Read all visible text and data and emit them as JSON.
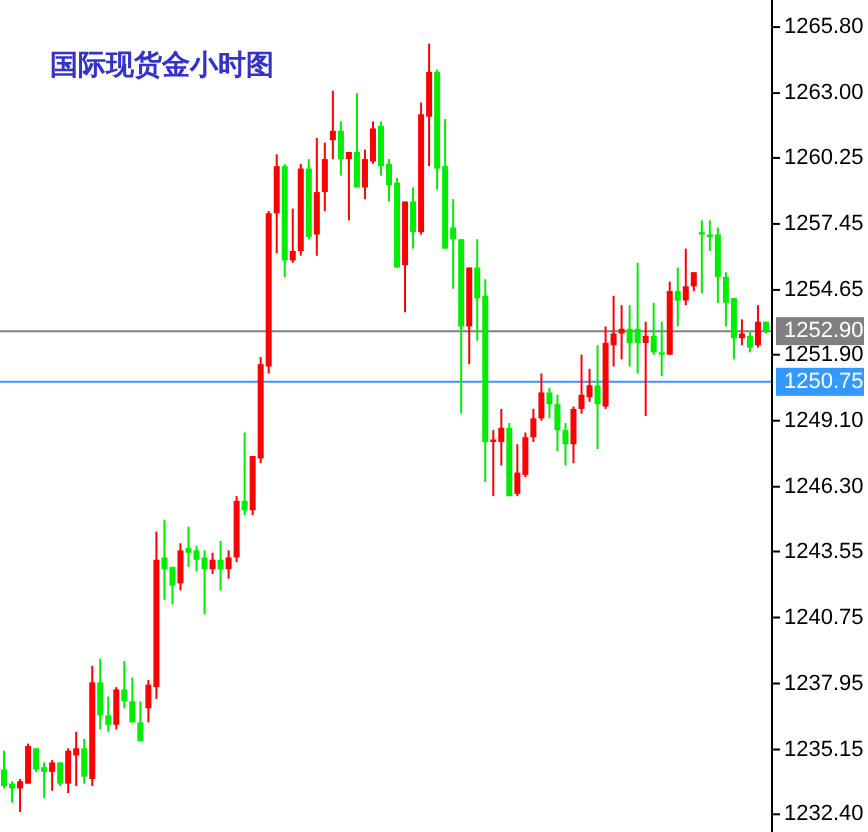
{
  "chart_data": {
    "type": "candlestick",
    "title": "国际现货金小时图",
    "categories": [
      null,
      null,
      null,
      null,
      null,
      null,
      null,
      null,
      null,
      null,
      null,
      null,
      null,
      null,
      null,
      null,
      null,
      null,
      null,
      null,
      null,
      null,
      null,
      null,
      null,
      null,
      null,
      null,
      null,
      null,
      null,
      null,
      null,
      null,
      null,
      null,
      null,
      null,
      null,
      null,
      null,
      null,
      null,
      null,
      null,
      null,
      null,
      null,
      null,
      null,
      null,
      null,
      null,
      null,
      null,
      null,
      null,
      null,
      null,
      null,
      null,
      null,
      null,
      null,
      null,
      null,
      null,
      null,
      null,
      null,
      null,
      null,
      null,
      null,
      null,
      null,
      null,
      null,
      null,
      null,
      null,
      null,
      null,
      null,
      null,
      null,
      null,
      null,
      null,
      null,
      null,
      null,
      null,
      null,
      null,
      null
    ],
    "ohlc": [
      [
        1234.3,
        1235.1,
        1233.5,
        1233.6
      ],
      [
        1233.7,
        1233.8,
        1232.9,
        1233.5
      ],
      [
        1233.5,
        1233.9,
        1232.5,
        1233.8
      ],
      [
        1233.7,
        1235.4,
        1233.7,
        1235.3
      ],
      [
        1235.2,
        1235.2,
        1234.2,
        1234.3
      ],
      [
        1234.4,
        1234.6,
        1233.1,
        1234.2
      ],
      [
        1234.2,
        1234.7,
        1233.4,
        1234.6
      ],
      [
        1234.6,
        1234.6,
        1233.6,
        1233.7
      ],
      [
        1233.7,
        1235.2,
        1233.3,
        1235.1
      ],
      [
        1234.9,
        1235.9,
        1233.6,
        1235.2
      ],
      [
        1235.2,
        1235.6,
        1233.7,
        1234.0
      ],
      [
        1233.9,
        1238.7,
        1233.6,
        1238.0
      ],
      [
        1238.0,
        1239.0,
        1236.0,
        1236.6
      ],
      [
        1236.6,
        1237.4,
        1235.9,
        1236.2
      ],
      [
        1236.2,
        1237.8,
        1236.0,
        1237.7
      ],
      [
        1237.7,
        1238.9,
        1236.9,
        1237.2
      ],
      [
        1237.2,
        1238.2,
        1236.3,
        1236.3
      ],
      [
        1236.3,
        1237.2,
        1235.5,
        1235.5
      ],
      [
        1236.9,
        1238.1,
        1236.3,
        1237.9
      ],
      [
        1237.8,
        1244.4,
        1237.3,
        1243.2
      ],
      [
        1243.3,
        1244.9,
        1241.5,
        1242.8
      ],
      [
        1242.9,
        1242.9,
        1241.3,
        1242.1
      ],
      [
        1242.2,
        1243.9,
        1241.9,
        1243.6
      ],
      [
        1243.7,
        1244.6,
        1242.9,
        1243.5
      ],
      [
        1243.6,
        1243.8,
        1242.7,
        1243.2
      ],
      [
        1243.3,
        1243.6,
        1240.9,
        1242.8
      ],
      [
        1242.8,
        1243.5,
        1242.6,
        1243.2
      ],
      [
        1243.2,
        1244.0,
        1241.9,
        1242.8
      ],
      [
        1242.8,
        1243.6,
        1242.4,
        1243.3
      ],
      [
        1243.3,
        1245.9,
        1243.1,
        1245.7
      ],
      [
        1245.7,
        1248.6,
        1245.1,
        1245.3
      ],
      [
        1245.3,
        1247.6,
        1245.1,
        1247.6
      ],
      [
        1247.5,
        1251.8,
        1247.3,
        1251.5
      ],
      [
        1251.4,
        1258.0,
        1251.1,
        1257.9
      ],
      [
        1257.9,
        1260.4,
        1256.2,
        1259.9
      ],
      [
        1259.9,
        1260.0,
        1255.2,
        1255.9
      ],
      [
        1255.9,
        1258.1,
        1255.8,
        1256.3
      ],
      [
        1256.3,
        1260.0,
        1256.1,
        1259.8
      ],
      [
        1259.8,
        1260.2,
        1256.8,
        1256.9
      ],
      [
        1257.0,
        1261.1,
        1256.1,
        1258.8
      ],
      [
        1258.8,
        1260.9,
        1258.0,
        1260.2
      ],
      [
        1261.0,
        1263.1,
        1260.2,
        1261.4
      ],
      [
        1261.4,
        1261.8,
        1259.5,
        1260.2
      ],
      [
        1260.2,
        1260.5,
        1257.6,
        1260.5
      ],
      [
        1260.5,
        1263.0,
        1259.0,
        1259.0
      ],
      [
        1259.0,
        1260.6,
        1258.5,
        1260.2
      ],
      [
        1260.1,
        1261.8,
        1260.0,
        1261.5
      ],
      [
        1261.6,
        1261.8,
        1259.5,
        1259.9
      ],
      [
        1260.0,
        1260.2,
        1258.4,
        1259.1
      ],
      [
        1259.2,
        1259.4,
        1255.6,
        1255.6
      ],
      [
        1255.7,
        1258.4,
        1253.7,
        1258.4
      ],
      [
        1258.4,
        1259.0,
        1256.4,
        1257.1
      ],
      [
        1257.1,
        1262.6,
        1257.0,
        1262.1
      ],
      [
        1262.0,
        1265.1,
        1259.9,
        1263.9
      ],
      [
        1263.9,
        1264.0,
        1258.9,
        1259.8
      ],
      [
        1259.9,
        1261.9,
        1256.4,
        1256.4
      ],
      [
        1257.3,
        1258.5,
        1254.7,
        1256.8
      ],
      [
        1256.8,
        1256.8,
        1249.4,
        1253.1
      ],
      [
        1253.1,
        1255.6,
        1251.5,
        1255.6
      ],
      [
        1255.6,
        1256.8,
        1252.5,
        1254.3
      ],
      [
        1254.4,
        1255.1,
        1246.5,
        1248.2
      ],
      [
        1248.2,
        1248.7,
        1245.9,
        1248.3
      ],
      [
        1248.2,
        1249.6,
        1247.2,
        1248.8
      ],
      [
        1248.8,
        1249.0,
        1245.9,
        1245.9
      ],
      [
        1246.0,
        1248.1,
        1245.9,
        1246.9
      ],
      [
        1246.8,
        1248.6,
        1246.7,
        1248.4
      ],
      [
        1248.4,
        1249.6,
        1248.2,
        1249.2
      ],
      [
        1249.2,
        1251.1,
        1249.1,
        1250.3
      ],
      [
        1250.3,
        1250.5,
        1249.2,
        1249.8
      ],
      [
        1249.8,
        1250.2,
        1247.8,
        1248.7
      ],
      [
        1248.7,
        1249.0,
        1247.2,
        1248.1
      ],
      [
        1248.1,
        1249.7,
        1247.3,
        1249.6
      ],
      [
        1249.6,
        1251.9,
        1249.4,
        1250.2
      ],
      [
        1250.1,
        1251.3,
        1249.9,
        1250.6
      ],
      [
        1250.6,
        1252.3,
        1247.9,
        1249.8
      ],
      [
        1249.7,
        1253.1,
        1249.6,
        1252.4
      ],
      [
        1252.3,
        1254.4,
        1251.4,
        1252.8
      ],
      [
        1252.8,
        1254.0,
        1251.7,
        1253.0
      ],
      [
        1253.0,
        1254.0,
        1251.4,
        1252.4
      ],
      [
        1253.0,
        1255.8,
        1251.1,
        1252.4
      ],
      [
        1252.4,
        1253.3,
        1249.3,
        1252.7
      ],
      [
        1252.7,
        1254.1,
        1251.9,
        1252.0
      ],
      [
        1252.0,
        1253.3,
        1251.0,
        1251.9
      ],
      [
        1251.9,
        1255.0,
        1251.9,
        1254.6
      ],
      [
        1254.6,
        1255.6,
        1253.1,
        1254.2
      ],
      [
        1254.2,
        1256.4,
        1254.0,
        1254.8
      ],
      [
        1254.8,
        1255.4,
        1254.6,
        1255.4
      ],
      [
        1257.1,
        1257.6,
        1254.5,
        1257.0
      ],
      [
        1257.0,
        1257.6,
        1256.3,
        1256.9
      ],
      [
        1257.0,
        1257.3,
        1254.1,
        1255.2
      ],
      [
        1255.2,
        1255.4,
        1253.1,
        1254.1
      ],
      [
        1254.3,
        1254.3,
        1251.7,
        1252.6
      ],
      [
        1252.6,
        1253.4,
        1252.3,
        1252.8
      ],
      [
        1252.7,
        1252.9,
        1252.0,
        1252.2
      ],
      [
        1252.3,
        1254.0,
        1252.2,
        1253.3
      ],
      [
        1253.3,
        1253.3,
        1252.8,
        1252.9
      ]
    ],
    "colors": [
      "#00ee00",
      "#00ee00",
      "#ff0000",
      "#ff0000",
      "#00ee00",
      "#00ee00",
      "#ff0000",
      "#00ee00",
      "#ff0000",
      "#ff0000",
      "#00ee00",
      "#ff0000",
      "#00ee00",
      "#00ee00",
      "#ff0000",
      "#00ee00",
      "#00ee00",
      "#00ee00",
      "#ff0000",
      "#ff0000",
      "#00ee00",
      "#00ee00",
      "#ff0000",
      "#00ee00",
      "#00ee00",
      "#00ee00",
      "#ff0000",
      "#00ee00",
      "#ff0000",
      "#ff0000",
      "#00ee00",
      "#ff0000",
      "#ff0000",
      "#ff0000",
      "#ff0000",
      "#00ee00",
      "#ff0000",
      "#ff0000",
      "#00ee00",
      "#ff0000",
      "#ff0000",
      "#ff0000",
      "#00ee00",
      "#ff0000",
      "#00ee00",
      "#ff0000",
      "#ff0000",
      "#00ee00",
      "#00ee00",
      "#00ee00",
      "#ff0000",
      "#00ee00",
      "#ff0000",
      "#ff0000",
      "#00ee00",
      "#00ee00",
      "#00ee00",
      "#00ee00",
      "#ff0000",
      "#00ee00",
      "#00ee00",
      "#ff0000",
      "#ff0000",
      "#00ee00",
      "#ff0000",
      "#ff0000",
      "#ff0000",
      "#ff0000",
      "#00ee00",
      "#00ee00",
      "#00ee00",
      "#ff0000",
      "#ff0000",
      "#ff0000",
      "#00ee00",
      "#ff0000",
      "#ff0000",
      "#ff0000",
      "#00ee00",
      "#00ee00",
      "#ff0000",
      "#00ee00",
      "#00ee00",
      "#ff0000",
      "#00ee00",
      "#ff0000",
      "#ff0000",
      "#00ee00",
      "#00ee00",
      "#00ee00",
      "#00ee00",
      "#00ee00",
      "#ff0000",
      "#00ee00",
      "#ff0000",
      "#00ee00"
    ],
    "ylim": [
      1231.65,
      1266.95
    ],
    "yticks": [
      {
        "value": 1265.8,
        "label": "1265.80"
      },
      {
        "value": 1263.0,
        "label": "1263.00"
      },
      {
        "value": 1260.25,
        "label": "1260.25"
      },
      {
        "value": 1257.45,
        "label": "1257.45"
      },
      {
        "value": 1254.65,
        "label": "1254.65"
      },
      {
        "value": 1251.9,
        "label": "1251.90"
      },
      {
        "value": 1249.1,
        "label": "1249.10"
      },
      {
        "value": 1246.3,
        "label": "1246.30"
      },
      {
        "value": 1243.55,
        "label": "1243.55"
      },
      {
        "value": 1240.75,
        "label": "1240.75"
      },
      {
        "value": 1237.95,
        "label": "1237.95"
      },
      {
        "value": 1235.15,
        "label": "1235.15"
      },
      {
        "value": 1232.4,
        "label": "1232.40"
      }
    ],
    "ref_lines": [
      {
        "axis": "y",
        "value": 1252.9,
        "label": "1252.90",
        "color": "#808080"
      },
      {
        "axis": "y",
        "value": 1250.75,
        "label": "1250.75",
        "color": "#3399ff"
      }
    ],
    "tick_labels": "y"
  }
}
